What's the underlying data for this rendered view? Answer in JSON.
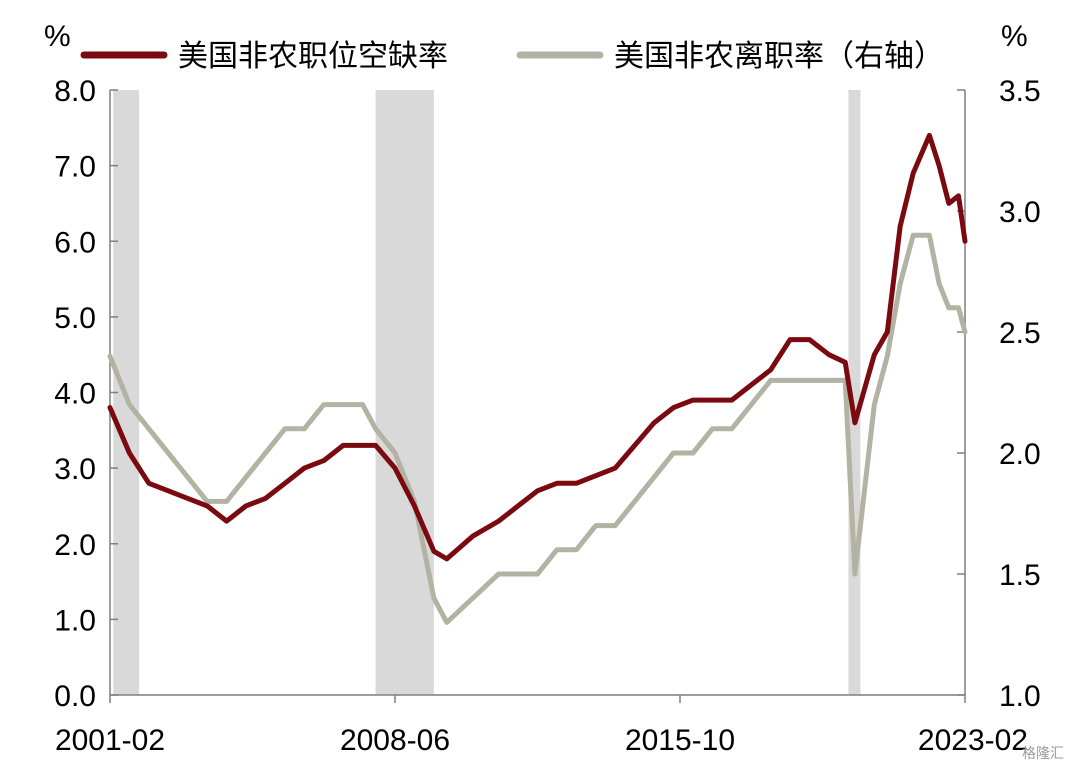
{
  "chart_data": {
    "type": "line",
    "left_unit": "%",
    "right_unit": "%",
    "x_tick_labels": [
      "2001-02",
      "2008-06",
      "2015-10",
      "2023-02"
    ],
    "x_range": [
      "2001-02",
      "2023-02"
    ],
    "y_left": {
      "ylim": [
        0,
        8
      ],
      "ticks": [
        "0.0",
        "1.0",
        "2.0",
        "3.0",
        "4.0",
        "5.0",
        "6.0",
        "7.0",
        "8.0"
      ]
    },
    "y_right": {
      "ylim": [
        1.0,
        3.5
      ],
      "ticks": [
        "1.0",
        "1.5",
        "2.0",
        "2.5",
        "3.0",
        "3.5"
      ]
    },
    "recession_periods": [
      [
        "2001-03",
        "2001-11"
      ],
      [
        "2007-12",
        "2009-06"
      ],
      [
        "2020-02",
        "2020-04"
      ]
    ],
    "grid": false,
    "legend_position": "top",
    "series": [
      {
        "name": "美国非农职位空缺率",
        "axis": "left",
        "color": "#7a0a10",
        "points": [
          [
            "2001-02",
            3.8
          ],
          [
            "2001-08",
            3.2
          ],
          [
            "2002-02",
            2.8
          ],
          [
            "2002-08",
            2.7
          ],
          [
            "2003-02",
            2.6
          ],
          [
            "2003-08",
            2.5
          ],
          [
            "2004-02",
            2.3
          ],
          [
            "2004-08",
            2.5
          ],
          [
            "2005-02",
            2.6
          ],
          [
            "2005-08",
            2.8
          ],
          [
            "2006-02",
            3.0
          ],
          [
            "2006-08",
            3.1
          ],
          [
            "2007-02",
            3.3
          ],
          [
            "2007-08",
            3.3
          ],
          [
            "2007-12",
            3.3
          ],
          [
            "2008-06",
            3.0
          ],
          [
            "2008-12",
            2.5
          ],
          [
            "2009-06",
            1.9
          ],
          [
            "2009-10",
            1.8
          ],
          [
            "2010-06",
            2.1
          ],
          [
            "2011-02",
            2.3
          ],
          [
            "2011-08",
            2.5
          ],
          [
            "2012-02",
            2.7
          ],
          [
            "2012-08",
            2.8
          ],
          [
            "2013-02",
            2.8
          ],
          [
            "2013-08",
            2.9
          ],
          [
            "2014-02",
            3.0
          ],
          [
            "2014-08",
            3.3
          ],
          [
            "2015-02",
            3.6
          ],
          [
            "2015-08",
            3.8
          ],
          [
            "2016-02",
            3.9
          ],
          [
            "2016-08",
            3.9
          ],
          [
            "2017-02",
            3.9
          ],
          [
            "2017-08",
            4.1
          ],
          [
            "2018-02",
            4.3
          ],
          [
            "2018-08",
            4.7
          ],
          [
            "2019-02",
            4.7
          ],
          [
            "2019-08",
            4.5
          ],
          [
            "2020-01",
            4.4
          ],
          [
            "2020-04",
            3.6
          ],
          [
            "2020-10",
            4.5
          ],
          [
            "2021-02",
            4.8
          ],
          [
            "2021-06",
            6.2
          ],
          [
            "2021-10",
            6.9
          ],
          [
            "2022-03",
            7.4
          ],
          [
            "2022-06",
            7.0
          ],
          [
            "2022-09",
            6.5
          ],
          [
            "2022-12",
            6.6
          ],
          [
            "2023-02",
            6.0
          ]
        ]
      },
      {
        "name": "美国非农离职率（右轴）",
        "axis": "right",
        "color": "#b3b3a3",
        "points": [
          [
            "2001-02",
            2.4
          ],
          [
            "2001-08",
            2.2
          ],
          [
            "2002-02",
            2.1
          ],
          [
            "2002-08",
            2.0
          ],
          [
            "2003-02",
            1.9
          ],
          [
            "2003-08",
            1.8
          ],
          [
            "2004-02",
            1.8
          ],
          [
            "2004-08",
            1.9
          ],
          [
            "2005-02",
            2.0
          ],
          [
            "2005-08",
            2.1
          ],
          [
            "2006-02",
            2.1
          ],
          [
            "2006-08",
            2.2
          ],
          [
            "2007-02",
            2.2
          ],
          [
            "2007-08",
            2.2
          ],
          [
            "2007-12",
            2.1
          ],
          [
            "2008-06",
            2.0
          ],
          [
            "2008-12",
            1.8
          ],
          [
            "2009-06",
            1.4
          ],
          [
            "2009-10",
            1.3
          ],
          [
            "2010-06",
            1.4
          ],
          [
            "2011-02",
            1.5
          ],
          [
            "2011-08",
            1.5
          ],
          [
            "2012-02",
            1.5
          ],
          [
            "2012-08",
            1.6
          ],
          [
            "2013-02",
            1.6
          ],
          [
            "2013-08",
            1.7
          ],
          [
            "2014-02",
            1.7
          ],
          [
            "2014-08",
            1.8
          ],
          [
            "2015-02",
            1.9
          ],
          [
            "2015-08",
            2.0
          ],
          [
            "2016-02",
            2.0
          ],
          [
            "2016-08",
            2.1
          ],
          [
            "2017-02",
            2.1
          ],
          [
            "2017-08",
            2.2
          ],
          [
            "2018-02",
            2.3
          ],
          [
            "2018-08",
            2.3
          ],
          [
            "2019-02",
            2.3
          ],
          [
            "2019-08",
            2.3
          ],
          [
            "2020-01",
            2.3
          ],
          [
            "2020-04",
            1.5
          ],
          [
            "2020-10",
            2.2
          ],
          [
            "2021-02",
            2.4
          ],
          [
            "2021-06",
            2.7
          ],
          [
            "2021-10",
            2.9
          ],
          [
            "2022-03",
            2.9
          ],
          [
            "2022-06",
            2.7
          ],
          [
            "2022-09",
            2.6
          ],
          [
            "2022-12",
            2.6
          ],
          [
            "2023-02",
            2.5
          ]
        ]
      }
    ]
  },
  "watermark_text": "格隆汇"
}
